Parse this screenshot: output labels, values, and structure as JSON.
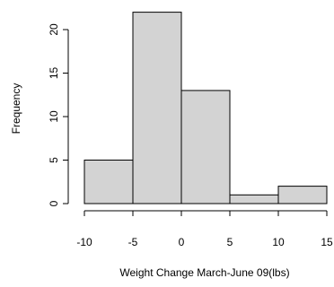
{
  "chart_data": {
    "type": "bar",
    "subtype": "histogram",
    "bins": [
      {
        "from": -10,
        "to": -5,
        "count": 5
      },
      {
        "from": -5,
        "to": 0,
        "count": 22
      },
      {
        "from": 0,
        "to": 5,
        "count": 13
      },
      {
        "from": 5,
        "to": 10,
        "count": 1
      },
      {
        "from": 10,
        "to": 15,
        "count": 2
      }
    ],
    "title": "",
    "xlabel": "Weight Change March-June 09(lbs)",
    "ylabel": "Frequency",
    "xlim": [
      -10,
      15
    ],
    "ylim": [
      0,
      22
    ],
    "x_ticks": [
      -10,
      -5,
      0,
      5,
      10,
      15
    ],
    "y_ticks": [
      0,
      5,
      10,
      15,
      20
    ],
    "bar_fill": "#d3d3d3",
    "bar_edge": "#000000",
    "grid": false,
    "legend": "none"
  }
}
